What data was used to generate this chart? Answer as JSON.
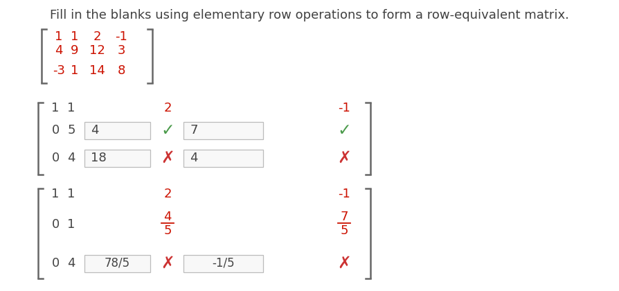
{
  "title": "Fill in the blanks using elementary row operations to form a row-equivalent matrix.",
  "title_color": "#404040",
  "title_fontsize": 13.0,
  "bg_color": "#ffffff",
  "red_color": "#cc1100",
  "gray_color": "#444444",
  "green_color": "#4a9a4a",
  "cross_color": "#cc3333",
  "matrix1_rows": [
    [
      "1",
      "1",
      "2",
      "-1"
    ],
    [
      "4",
      "9",
      "12",
      "3"
    ],
    [
      "-3",
      "1",
      "14",
      "8"
    ]
  ]
}
